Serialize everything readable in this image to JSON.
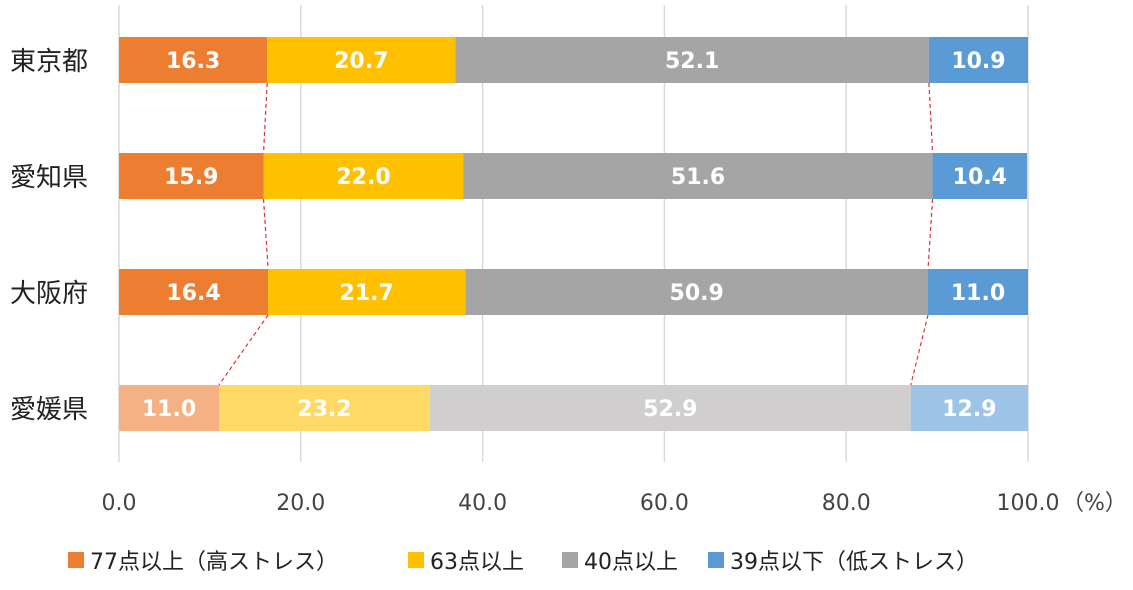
{
  "chart_data": {
    "type": "bar",
    "orientation": "horizontal",
    "stacked": true,
    "categories": [
      "東京都",
      "愛知県",
      "大阪府",
      "愛媛県"
    ],
    "series": [
      {
        "name": "77点以上（高ストレス）",
        "values": [
          16.3,
          15.9,
          16.4,
          11.0
        ],
        "color": "#ED7D31",
        "highlight_color": "#F4B183"
      },
      {
        "name": "63点以上",
        "values": [
          20.7,
          22.0,
          21.7,
          23.2
        ],
        "color": "#FFC000",
        "highlight_color": "#FFD966"
      },
      {
        "name": "40点以上",
        "values": [
          52.1,
          51.6,
          50.9,
          52.9
        ],
        "color": "#A5A5A5",
        "highlight_color": "#D0CECE"
      },
      {
        "name": "39点以下（低ストレス）",
        "values": [
          10.9,
          10.4,
          11.0,
          12.9
        ],
        "color": "#5B9BD5",
        "highlight_color": "#9DC3E6"
      }
    ],
    "highlighted_category": "愛媛県",
    "xlim": [
      0,
      100
    ],
    "xticks": [
      0,
      20,
      40,
      60,
      80,
      100
    ],
    "xtick_labels": [
      "0.0",
      "20.0",
      "40.0",
      "60.0",
      "80.0",
      "100.0"
    ],
    "x_unit": "（%）",
    "grid": true,
    "legend_position": "bottom",
    "series_connector_lines": true,
    "connector_color": "#E03030"
  }
}
